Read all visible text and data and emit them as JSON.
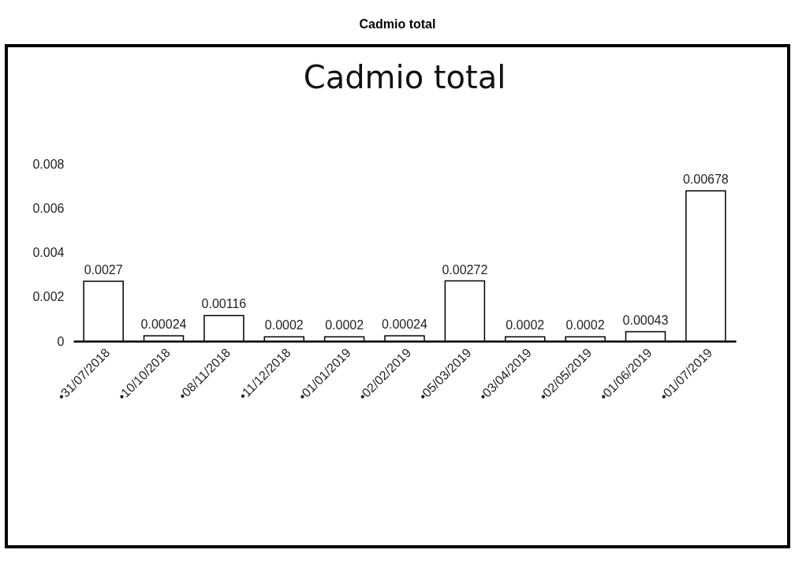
{
  "chart_data": {
    "type": "bar",
    "title": "Cadmio total",
    "subtitle": "Cadmio total",
    "categories": [
      "•31/07/2018",
      "•10/10/2018",
      "•08/11/2018",
      "•11/12/2018",
      "•01/01/2019",
      "•02/02/2019",
      "•05/03/2019",
      "•03/04/2019",
      "•02/05/2019",
      "•01/06/2019",
      "•01/07/2019"
    ],
    "values": [
      0.0027,
      0.00024,
      0.00116,
      0.0002,
      0.0002,
      0.00024,
      0.00272,
      0.0002,
      0.0002,
      0.00043,
      0.00678
    ],
    "color": "#ffffff",
    "ylim": [
      0,
      0.008
    ],
    "yticks": [
      0,
      0.002,
      0.004,
      0.006,
      0.008
    ],
    "grid": false,
    "data_labels": true
  }
}
